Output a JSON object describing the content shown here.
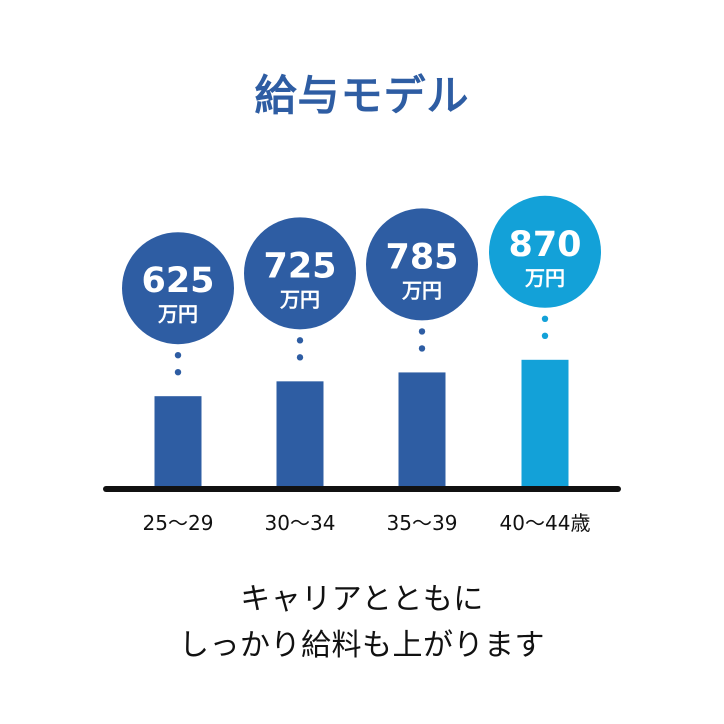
{
  "title": "給与モデル",
  "chart_data": {
    "type": "bar",
    "categories": [
      "25〜29",
      "30〜34",
      "35〜39",
      "40〜44歳"
    ],
    "values": [
      625,
      725,
      785,
      870
    ],
    "unit_label": "万円",
    "ylim": [
      0,
      1000
    ],
    "grid": false,
    "colors": {
      "primary": "#2e5da3",
      "highlight": "#13a1d8",
      "axis": "#111111"
    }
  },
  "caption": {
    "line1": "キャリアとともに",
    "line2": "しっかり給料も上がります"
  }
}
